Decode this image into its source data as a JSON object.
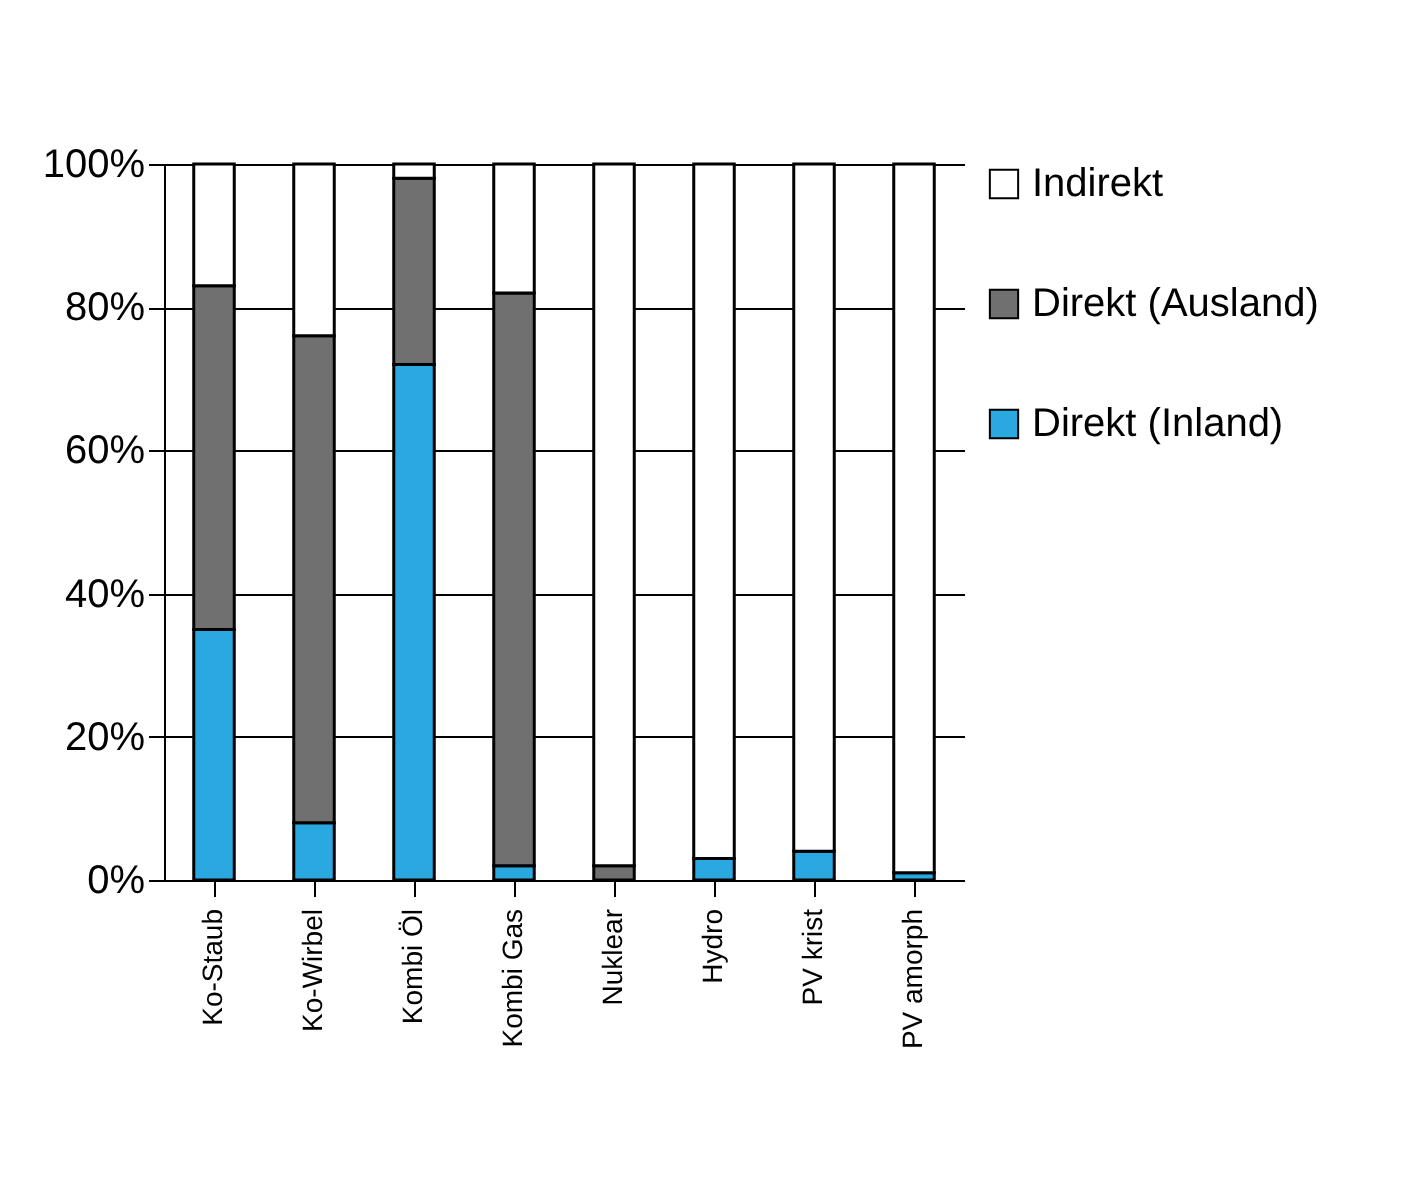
{
  "chart_data": {
    "type": "bar",
    "stacked": true,
    "categories": [
      "Ko-Staub",
      "Ko-Wirbel",
      "Kombi Öl",
      "Kombi Gas",
      "Nuklear",
      "Hydro",
      "PV krist",
      "PV amorph"
    ],
    "series": [
      {
        "name": "Direkt (Inland)",
        "color": "#29a9e0",
        "values": [
          35,
          8,
          72,
          2,
          0,
          3,
          4,
          1
        ]
      },
      {
        "name": "Direkt (Ausland)",
        "color": "#707070",
        "values": [
          48,
          68,
          26,
          80,
          2,
          0,
          0,
          0
        ]
      },
      {
        "name": "Indirekt",
        "color": "#ffffff",
        "values": [
          17,
          24,
          2,
          18,
          98,
          97,
          96,
          99
        ]
      }
    ],
    "ylim": [
      0,
      100
    ],
    "yticks": [
      {
        "value": 0,
        "label": "0%"
      },
      {
        "value": 20,
        "label": "20%"
      },
      {
        "value": 40,
        "label": "40%"
      },
      {
        "value": 60,
        "label": "60%"
      },
      {
        "value": 80,
        "label": "80%"
      },
      {
        "value": 100,
        "label": "100%"
      }
    ],
    "grid": "y",
    "legend": "right"
  }
}
